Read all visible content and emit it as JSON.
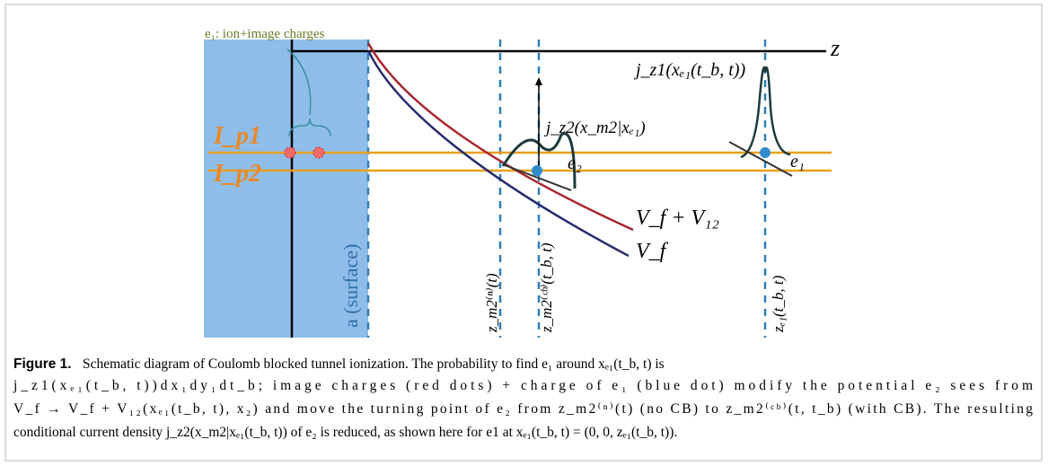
{
  "diagram": {
    "annotation": "e₁: ion+image charges",
    "z_axis": "z",
    "j_z1": "j_z1(xₑ₁(t_b, t))",
    "ip1": "I_p1",
    "ip2": "I_p2",
    "surface": "a (surface)",
    "j_z2": "j_z2(x_m2|xₑ₁)",
    "e2": "e₂",
    "e1": "e₁",
    "vf_v12": "V_f + V₁₂",
    "vf": "V_f",
    "z_n": "z_m2⁽ⁿ⁾(t)",
    "z_cb": "z_m2⁽ᶜᵇ⁾(t_b, t)",
    "z_e1": "zₑ₁(t_b, t)"
  },
  "caption": {
    "label": "Figure 1.",
    "lines": [
      "Schematic diagram of Coulomb blocked tunnel ionization. The probability to find e₁ around xₑ₁(t_b, t) is",
      "j_z1(xₑ₁(t_b, t))dx₁dy₁dt_b; image charges (red dots) + charge of e₁ (blue dot) modify the potential e₂ sees from",
      "V_f → V_f + V₁₂(xₑ₁(t_b, t), x₂) and move the turning point of e₂ from z_m2⁽ⁿ⁾(t) (no CB) to z_m2⁽ᶜᵇ⁾(t, t_b) (with CB). The resulting",
      "conditional current density j_z2(x_m2|xₑ₁(t_b, t)) of e₂ is reduced, as shown here for e1 at xₑ₁(t_b, t) = (0, 0, zₑ₁(t_b, t))."
    ]
  }
}
